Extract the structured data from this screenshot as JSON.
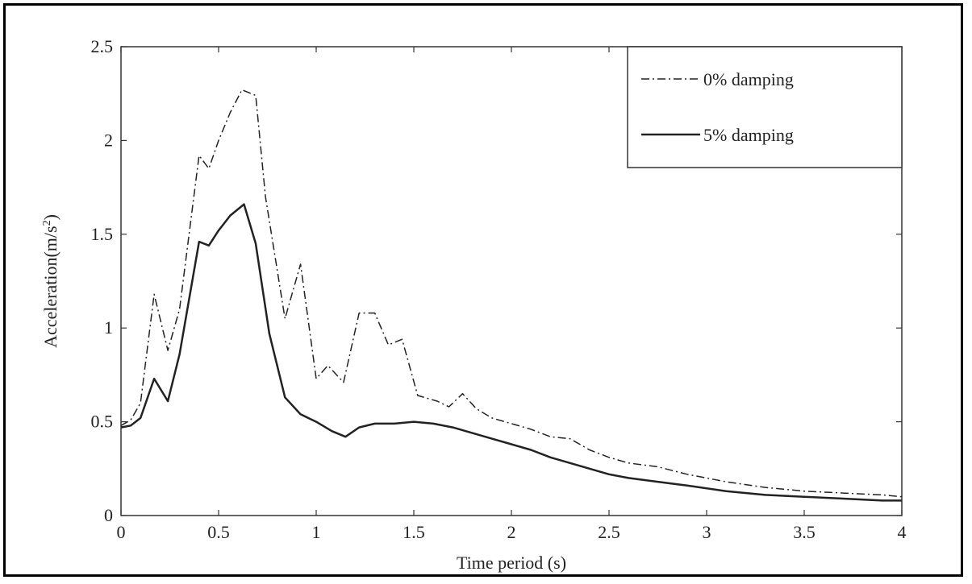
{
  "chart_data": {
    "type": "line",
    "title": "",
    "xlabel": "Time period (s)",
    "ylabel_main": "Acceleration(m/s",
    "ylabel_sup": "2",
    "ylabel_close": ")",
    "xlim": [
      0,
      4
    ],
    "ylim": [
      0,
      2.5
    ],
    "x_ticks": [
      0,
      0.5,
      1,
      1.5,
      2,
      2.5,
      3,
      3.5,
      4
    ],
    "x_tick_labels": [
      "0",
      "0.5",
      "1",
      "1.5",
      "2",
      "2.5",
      "3",
      "3.5",
      "4"
    ],
    "y_ticks": [
      0,
      0.5,
      1,
      1.5,
      2,
      2.5
    ],
    "y_tick_labels": [
      "0",
      "0.5",
      "1",
      "1.5",
      "2",
      "2.5"
    ],
    "grid": false,
    "legend_position": "top-right",
    "series": [
      {
        "name": "0% damping",
        "style": "dashed",
        "color": "#222222",
        "x": [
          0,
          0.05,
          0.1,
          0.17,
          0.24,
          0.3,
          0.4,
          0.45,
          0.5,
          0.56,
          0.62,
          0.69,
          0.74,
          0.84,
          0.92,
          1.0,
          1.06,
          1.14,
          1.22,
          1.3,
          1.37,
          1.44,
          1.52,
          1.62,
          1.68,
          1.75,
          1.82,
          1.9,
          2.0,
          2.1,
          2.2,
          2.3,
          2.4,
          2.5,
          2.6,
          2.75,
          2.9,
          3.1,
          3.3,
          3.5,
          3.7,
          3.9,
          4.0
        ],
        "y": [
          0.48,
          0.51,
          0.6,
          1.18,
          0.88,
          1.1,
          1.92,
          1.85,
          2.0,
          2.15,
          2.27,
          2.24,
          1.7,
          1.05,
          1.34,
          0.73,
          0.8,
          0.71,
          1.08,
          1.08,
          0.91,
          0.94,
          0.64,
          0.61,
          0.58,
          0.65,
          0.57,
          0.52,
          0.49,
          0.46,
          0.42,
          0.41,
          0.35,
          0.31,
          0.28,
          0.26,
          0.22,
          0.18,
          0.15,
          0.13,
          0.12,
          0.11,
          0.1
        ]
      },
      {
        "name": "5% damping",
        "style": "solid",
        "color": "#222222",
        "x": [
          0,
          0.05,
          0.1,
          0.17,
          0.24,
          0.3,
          0.4,
          0.45,
          0.5,
          0.56,
          0.63,
          0.69,
          0.76,
          0.84,
          0.92,
          1.0,
          1.08,
          1.15,
          1.22,
          1.3,
          1.4,
          1.5,
          1.6,
          1.7,
          1.8,
          1.9,
          2.0,
          2.1,
          2.2,
          2.3,
          2.4,
          2.5,
          2.6,
          2.75,
          2.9,
          3.1,
          3.3,
          3.5,
          3.7,
          3.9,
          4.0
        ],
        "y": [
          0.47,
          0.48,
          0.52,
          0.73,
          0.61,
          0.86,
          1.46,
          1.44,
          1.52,
          1.6,
          1.66,
          1.45,
          0.97,
          0.63,
          0.54,
          0.5,
          0.45,
          0.42,
          0.47,
          0.49,
          0.49,
          0.5,
          0.49,
          0.47,
          0.44,
          0.41,
          0.38,
          0.35,
          0.31,
          0.28,
          0.25,
          0.22,
          0.2,
          0.18,
          0.16,
          0.13,
          0.11,
          0.1,
          0.09,
          0.08,
          0.08
        ]
      }
    ]
  }
}
